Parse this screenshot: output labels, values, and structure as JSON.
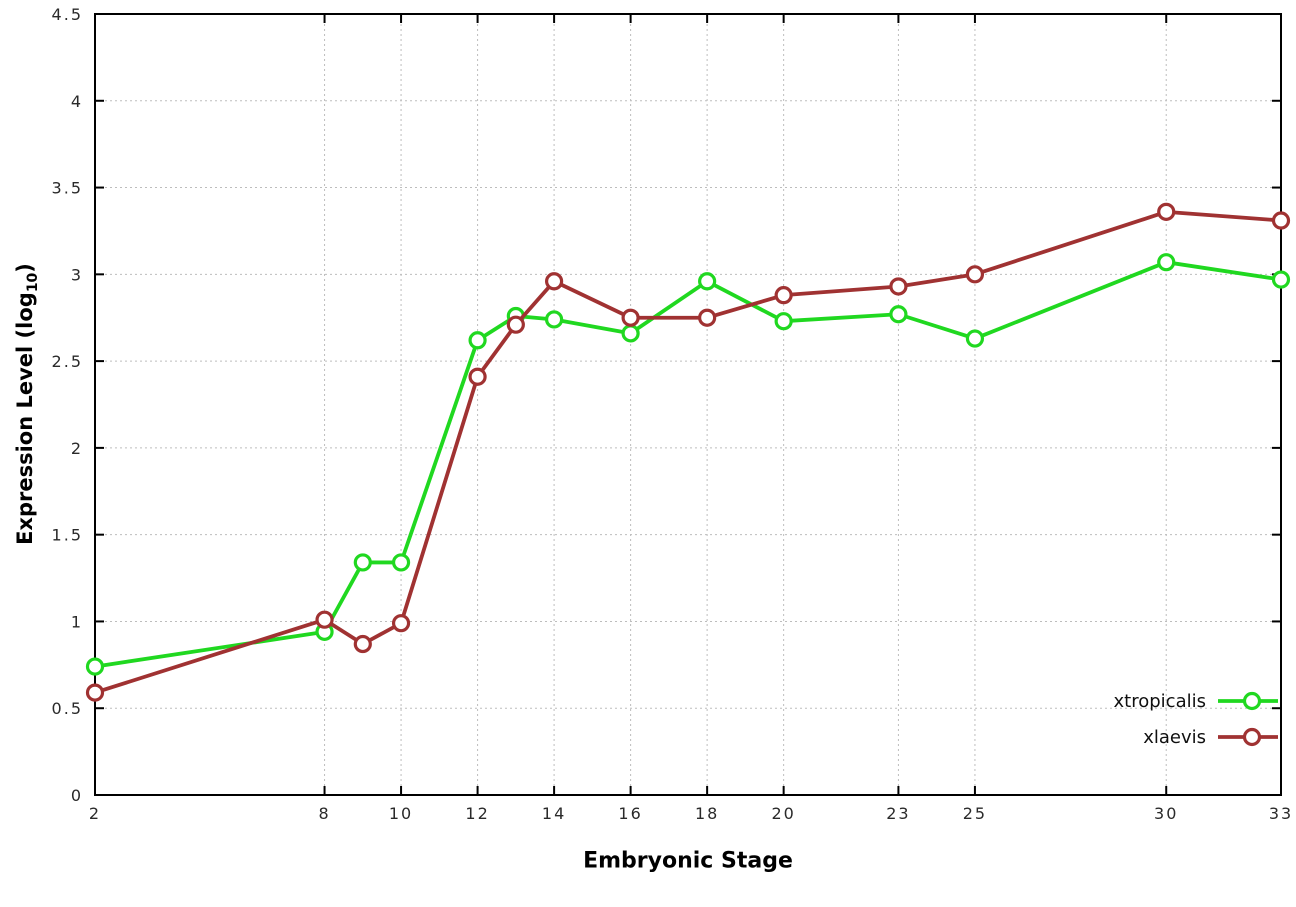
{
  "chart_data": {
    "type": "line",
    "title": "",
    "xlabel": "Embryonic Stage",
    "ylabel": "Expression Level (log10)",
    "ylabel_display": {
      "main": "Expression Level (log",
      "sub": "10",
      "close": ")"
    },
    "xlim": [
      2,
      33
    ],
    "ylim": [
      0,
      4.5
    ],
    "x": [
      2,
      8,
      9,
      10,
      12,
      13,
      14,
      16,
      18,
      20,
      23,
      25,
      30,
      33
    ],
    "series": [
      {
        "name": "xtropicalis",
        "color": "#20d820",
        "values": [
          0.74,
          0.94,
          1.34,
          1.34,
          2.62,
          2.76,
          2.74,
          2.66,
          2.96,
          2.73,
          2.77,
          2.63,
          3.07,
          2.97
        ]
      },
      {
        "name": "xlaevis",
        "color": "#a03232",
        "values": [
          0.59,
          1.01,
          0.87,
          0.99,
          2.41,
          2.71,
          2.96,
          2.75,
          2.75,
          2.88,
          2.93,
          3.0,
          3.36,
          3.31
        ]
      }
    ],
    "xticks": [
      2,
      8,
      10,
      12,
      14,
      16,
      18,
      20,
      23,
      25,
      30,
      33
    ],
    "xtick_labels": [
      "2",
      "8",
      "10",
      "12",
      "14",
      "16",
      "18",
      "20",
      "23",
      "25",
      "30",
      "33"
    ],
    "yticks": [
      0,
      0.5,
      1,
      1.5,
      2,
      2.5,
      3,
      3.5,
      4,
      4.5
    ],
    "ytick_labels": [
      "0",
      "0.5",
      "1",
      "1.5",
      "2",
      "2.5",
      "3",
      "3.5",
      "4",
      "4.5"
    ],
    "grid": true,
    "legend_position": "bottom-right",
    "colors": {
      "background": "#ffffff",
      "axis": "#000000",
      "grid": "#bdbdbd",
      "tick_text": "#2a2a2a",
      "label_text": "#000000"
    }
  }
}
